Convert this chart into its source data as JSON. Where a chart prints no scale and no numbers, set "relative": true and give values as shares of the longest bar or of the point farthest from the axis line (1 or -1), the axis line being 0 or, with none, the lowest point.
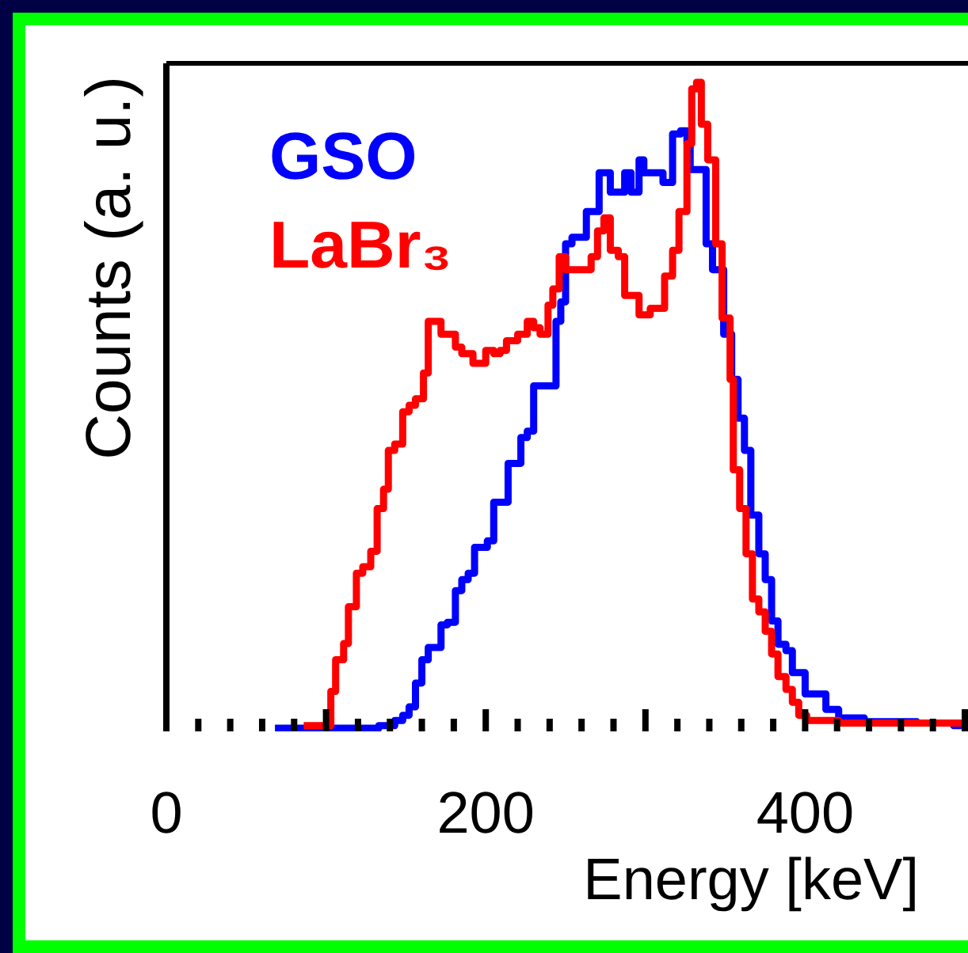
{
  "chart_data": {
    "type": "step",
    "xlabel": "Energy [keV]",
    "ylabel": "Counts (a. u.)",
    "relative": true,
    "legend": "top left",
    "xlim": [
      0,
      500
    ],
    "xticks": [
      0,
      {
        "value": 20,
        "label": null
      },
      {
        "value": 40,
        "label": null
      },
      {
        "value": 60,
        "label": null
      },
      {
        "value": 80,
        "label": null
      },
      {
        "value": 100,
        "label": null
      },
      {
        "value": 120,
        "label": null
      },
      {
        "value": 140,
        "label": null
      },
      {
        "value": 160,
        "label": null
      },
      {
        "value": 180,
        "label": null
      },
      200,
      {
        "value": 220,
        "label": null
      },
      {
        "value": 240,
        "label": null
      },
      {
        "value": 260,
        "label": null
      },
      {
        "value": 280,
        "label": null
      },
      {
        "value": 300,
        "label": null
      },
      {
        "value": 320,
        "label": null
      },
      {
        "value": 340,
        "label": null
      },
      {
        "value": 360,
        "label": null
      },
      {
        "value": 380,
        "label": null
      },
      400,
      {
        "value": 420,
        "label": null
      },
      {
        "value": 440,
        "label": null
      },
      {
        "value": 460,
        "label": null
      },
      {
        "value": 480,
        "label": null
      },
      {
        "value": 500,
        "label": null
      }
    ],
    "series": [
      {
        "name": "GSO",
        "color": "#0000ff",
        "x": [
          68,
          133,
          143,
          148,
          152,
          156,
          160,
          164,
          172,
          176,
          181,
          185,
          189,
          193,
          201,
          205,
          214,
          222,
          226,
          230,
          238,
          244,
          247,
          250,
          254,
          263,
          271,
          278,
          287,
          291,
          296,
          299,
          311,
          317,
          322,
          326,
          328,
          338,
          342,
          349,
          354,
          358,
          362,
          366,
          371,
          375,
          379,
          383,
          388,
          392,
          400,
          408,
          413,
          421,
          437,
          470,
          493,
          499
        ],
        "values": [
          0,
          0.004,
          0.012,
          0.02,
          0.033,
          0.07,
          0.106,
          0.125,
          0.16,
          0.164,
          0.213,
          0.23,
          0.24,
          0.28,
          0.29,
          0.35,
          0.41,
          0.45,
          0.46,
          0.53,
          0.53,
          0.63,
          0.66,
          0.75,
          0.76,
          0.8,
          0.86,
          0.83,
          0.86,
          0.83,
          0.88,
          0.86,
          0.845,
          0.92,
          0.925,
          0.905,
          0.865,
          0.75,
          0.71,
          0.61,
          0.54,
          0.48,
          0.43,
          0.33,
          0.27,
          0.23,
          0.166,
          0.13,
          0.12,
          0.086,
          0.053,
          0.053,
          0.029,
          0.016,
          0.01,
          0.008,
          0.004,
          0.004
        ]
      },
      {
        "name": "LaBr₃",
        "color": "#ff0000",
        "x": [
          86,
          103,
          106,
          111,
          114,
          119,
          123,
          128,
          132,
          136,
          139,
          143,
          148,
          152,
          156,
          161,
          164,
          168,
          172,
          176,
          181,
          185,
          192,
          200,
          205,
          209,
          213,
          220,
          226,
          230,
          234,
          239,
          242,
          246,
          250,
          258,
          266,
          270,
          274,
          278,
          283,
          287,
          296,
          303,
          312,
          317,
          321,
          326,
          329,
          332,
          335,
          339,
          344,
          348,
          353,
          355,
          359,
          363,
          367,
          371,
          375,
          379,
          383,
          388,
          392,
          396,
          401,
          421,
          500
        ],
        "values": [
          0.004,
          0.057,
          0.106,
          0.131,
          0.188,
          0.24,
          0.25,
          0.274,
          0.34,
          0.37,
          0.43,
          0.44,
          0.49,
          0.5,
          0.51,
          0.55,
          0.63,
          0.63,
          0.61,
          0.61,
          0.59,
          0.58,
          0.565,
          0.585,
          0.58,
          0.585,
          0.6,
          0.61,
          0.63,
          0.62,
          0.61,
          0.655,
          0.68,
          0.73,
          0.71,
          0.71,
          0.73,
          0.77,
          0.79,
          0.74,
          0.73,
          0.67,
          0.64,
          0.65,
          0.7,
          0.74,
          0.8,
          0.905,
          0.99,
          1.0,
          0.935,
          0.88,
          0.75,
          0.635,
          0.54,
          0.4,
          0.34,
          0.27,
          0.2,
          0.18,
          0.15,
          0.115,
          0.08,
          0.06,
          0.04,
          0.02,
          0.012,
          0.008,
          0.008
        ]
      }
    ]
  }
}
